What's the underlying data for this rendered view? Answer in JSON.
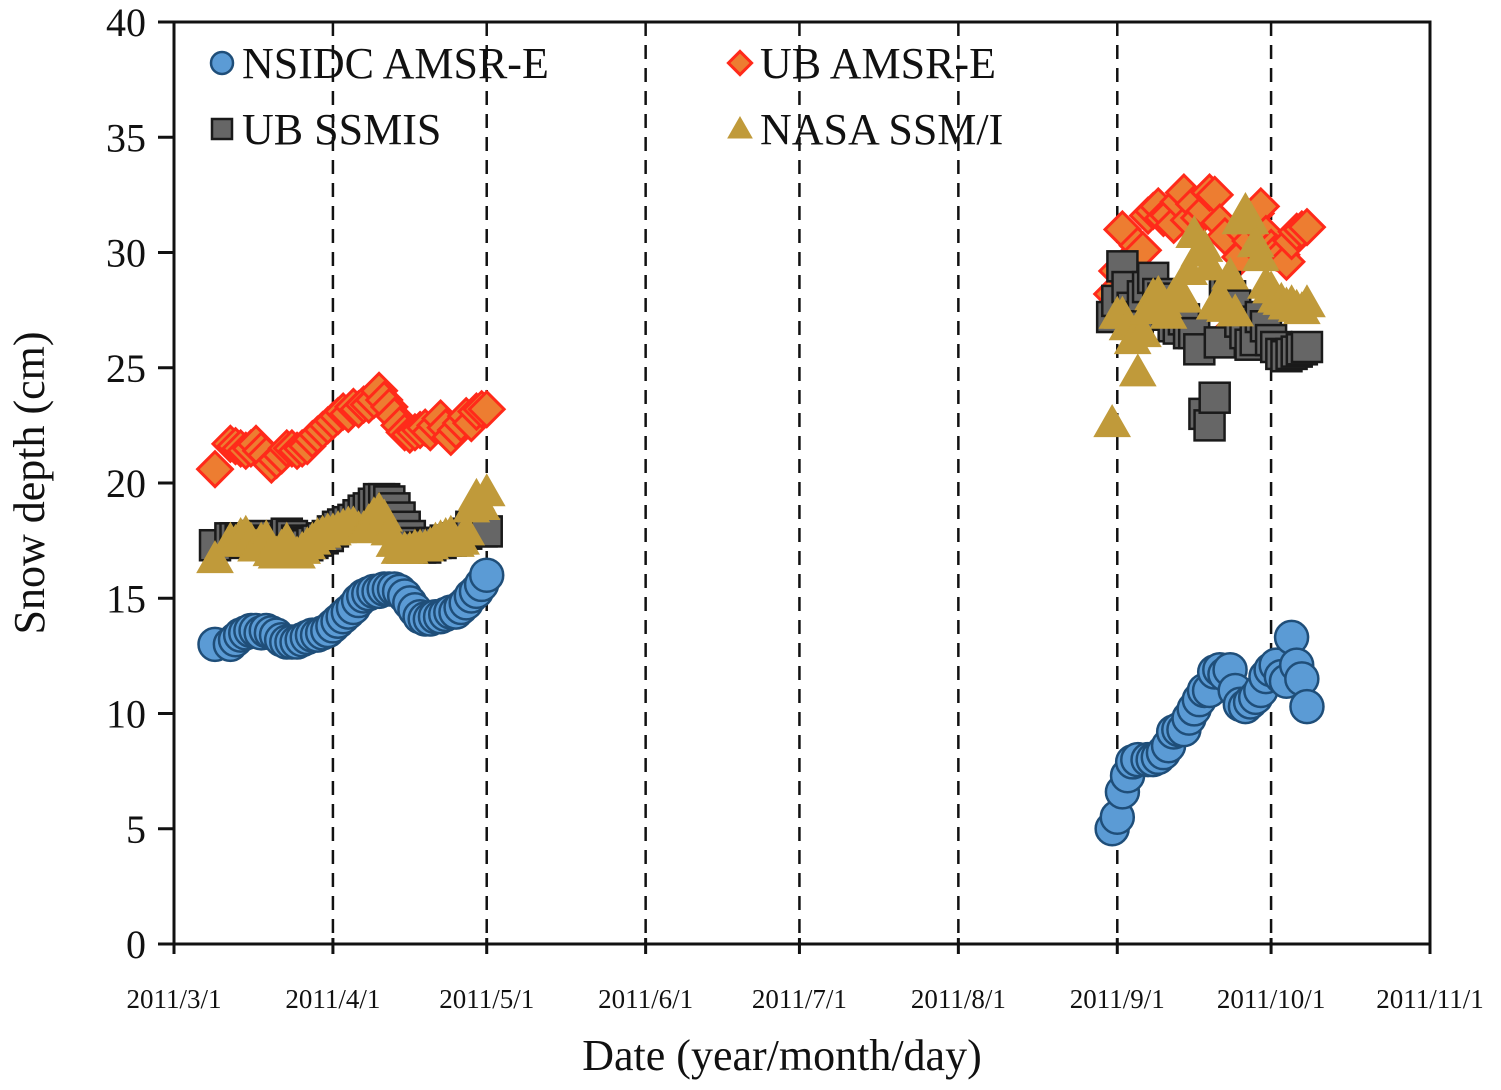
{
  "chart_data": {
    "type": "scatter",
    "title": "",
    "xlabel": "Date (year/month/day)",
    "ylabel": "Snow depth (cm)",
    "x_units": "days since 2011/3/1",
    "xlim": [
      0,
      245
    ],
    "ylim": [
      0,
      40
    ],
    "y_ticks": [
      0,
      5,
      10,
      15,
      20,
      25,
      30,
      35,
      40
    ],
    "x_ticks": [
      {
        "day": 0,
        "label": "2011/3/1"
      },
      {
        "day": 31,
        "label": "2011/4/1"
      },
      {
        "day": 61,
        "label": "2011/5/1"
      },
      {
        "day": 92,
        "label": "2011/6/1"
      },
      {
        "day": 122,
        "label": "2011/7/1"
      },
      {
        "day": 153,
        "label": "2011/8/1"
      },
      {
        "day": 184,
        "label": "2011/9/1"
      },
      {
        "day": 214,
        "label": "2011/10/1"
      },
      {
        "day": 245,
        "label": "2011/11/1"
      }
    ],
    "vertical_dashed_lines_at_days": [
      31,
      61,
      92,
      122,
      153,
      184,
      214
    ],
    "grid": false,
    "legend_position": "top-left",
    "legend": [
      {
        "name": "NSIDC AMSR-E",
        "marker": "circle",
        "color": "#5b9bd5",
        "edge": "#1f4e79"
      },
      {
        "name": "UB AMSR-E",
        "marker": "diamond",
        "color": "#ed7d31",
        "edge": "#ff2a1a"
      },
      {
        "name": "UB SSMIS",
        "marker": "square",
        "color": "#666666",
        "edge": "#1a1a1a"
      },
      {
        "name": "NASA SSM/I",
        "marker": "triangle",
        "color": "#c09a3a",
        "edge": "#c09a3a"
      }
    ],
    "series": [
      {
        "name": "NSIDC AMSR-E",
        "x": [
          8,
          11,
          12,
          13,
          14,
          15,
          16,
          17,
          18,
          19,
          20,
          21,
          22,
          23,
          24,
          25,
          26,
          27,
          28,
          29,
          30,
          31,
          32,
          33,
          34,
          35,
          36,
          37,
          38,
          39,
          40,
          41,
          42,
          43,
          44,
          45,
          46,
          47,
          48,
          49,
          50,
          51,
          52,
          53,
          54,
          55,
          56,
          57,
          58,
          59,
          60,
          61,
          183,
          184,
          185,
          186,
          187,
          188,
          190,
          191,
          192,
          193,
          194,
          195,
          196,
          197,
          198,
          199,
          200,
          201,
          202,
          203,
          204,
          205,
          206,
          207,
          208,
          209,
          210,
          211,
          212,
          213,
          214,
          215,
          216,
          217,
          218,
          219,
          220,
          221
        ],
        "y": [
          13.0,
          13.0,
          13.2,
          13.4,
          13.5,
          13.6,
          13.6,
          13.5,
          13.6,
          13.5,
          13.4,
          13.2,
          13.1,
          13.1,
          13.1,
          13.2,
          13.3,
          13.4,
          13.4,
          13.5,
          13.6,
          13.8,
          14.0,
          14.2,
          14.4,
          14.6,
          14.9,
          15.1,
          15.2,
          15.3,
          15.3,
          15.4,
          15.4,
          15.4,
          15.3,
          15.1,
          14.8,
          14.5,
          14.2,
          14.1,
          14.1,
          14.2,
          14.2,
          14.3,
          14.4,
          14.4,
          14.6,
          14.8,
          15.1,
          15.3,
          15.6,
          16.0,
          5.0,
          5.5,
          6.6,
          7.3,
          7.9,
          8.0,
          8.0,
          8.0,
          8.1,
          8.3,
          8.6,
          9.2,
          9.3,
          9.3,
          9.8,
          10.2,
          10.6,
          11.0,
          11.0,
          11.8,
          11.9,
          11.7,
          11.9,
          11.0,
          10.4,
          10.3,
          10.5,
          10.7,
          11.0,
          11.6,
          11.9,
          12.1,
          11.6,
          11.4,
          13.3,
          12.1,
          11.5,
          10.3
        ]
      },
      {
        "name": "UB AMSR-E",
        "x": [
          8,
          11,
          12,
          13,
          14,
          15,
          16,
          17,
          18,
          19,
          20,
          21,
          22,
          23,
          24,
          25,
          26,
          27,
          28,
          29,
          30,
          31,
          32,
          33,
          34,
          35,
          36,
          37,
          38,
          39,
          40,
          41,
          42,
          43,
          44,
          45,
          46,
          47,
          48,
          49,
          50,
          51,
          52,
          53,
          54,
          55,
          56,
          57,
          58,
          59,
          60,
          61,
          183,
          184,
          185,
          186,
          187,
          188,
          189,
          190,
          191,
          192,
          193,
          194,
          195,
          196,
          197,
          198,
          199,
          200,
          201,
          202,
          203,
          204,
          205,
          206,
          207,
          208,
          209,
          210,
          211,
          212,
          213,
          214,
          215,
          216,
          217,
          218,
          219,
          220,
          221
        ],
        "y": [
          20.6,
          21.7,
          21.6,
          21.5,
          21.4,
          21.5,
          21.7,
          21.4,
          21.2,
          20.8,
          21.0,
          21.2,
          21.5,
          21.5,
          21.4,
          21.5,
          21.6,
          21.9,
          22.1,
          22.3,
          22.5,
          22.7,
          22.9,
          23.1,
          23.0,
          23.3,
          23.2,
          23.4,
          23.4,
          23.6,
          24.0,
          23.6,
          23.3,
          22.9,
          22.5,
          22.2,
          22.1,
          22.2,
          22.3,
          22.4,
          22.2,
          22.5,
          22.8,
          22.4,
          22.0,
          22.3,
          22.6,
          22.9,
          22.6,
          23.1,
          23.2,
          23.2,
          28.2,
          29.2,
          31.0,
          28.9,
          29.8,
          30.3,
          30.1,
          31.6,
          31.8,
          32.0,
          31.5,
          31.6,
          31.2,
          32.2,
          32.6,
          31.4,
          32.1,
          31.5,
          31.8,
          32.6,
          32.5,
          31.3,
          30.7,
          26.6,
          26.3,
          29.8,
          30.8,
          30.5,
          31.7,
          32.0,
          30.8,
          30.2,
          30.0,
          29.9,
          29.6,
          30.5,
          30.9,
          31.0,
          31.1
        ]
      },
      {
        "name": "UB SSMIS",
        "x": [
          8,
          11,
          12,
          13,
          14,
          15,
          16,
          17,
          18,
          19,
          20,
          21,
          22,
          23,
          24,
          25,
          26,
          27,
          28,
          29,
          30,
          31,
          32,
          33,
          34,
          35,
          36,
          37,
          38,
          39,
          40,
          41,
          42,
          43,
          44,
          45,
          46,
          47,
          48,
          49,
          50,
          51,
          52,
          53,
          54,
          55,
          56,
          57,
          58,
          59,
          60,
          61,
          183,
          184,
          185,
          186,
          187,
          188,
          189,
          190,
          191,
          192,
          193,
          194,
          195,
          196,
          197,
          198,
          199,
          200,
          201,
          202,
          203,
          204,
          205,
          206,
          207,
          208,
          209,
          210,
          211,
          212,
          213,
          214,
          215,
          216,
          217,
          218,
          219,
          220,
          221
        ],
        "y": [
          17.3,
          17.6,
          17.6,
          17.5,
          17.4,
          17.6,
          17.7,
          17.5,
          17.4,
          17.3,
          17.2,
          17.5,
          17.8,
          17.7,
          17.5,
          17.4,
          17.3,
          17.4,
          17.5,
          17.6,
          17.7,
          17.9,
          18.1,
          18.2,
          18.3,
          18.4,
          18.6,
          18.8,
          18.9,
          19.1,
          19.3,
          19.3,
          19.2,
          18.9,
          18.5,
          18.1,
          17.7,
          17.4,
          17.2,
          17.2,
          17.3,
          17.4,
          17.4,
          17.5,
          17.5,
          17.6,
          17.6,
          17.8,
          18.1,
          18.1,
          17.9,
          17.9,
          27.2,
          27.9,
          29.4,
          28.5,
          27.6,
          27.2,
          28.1,
          28.5,
          28.9,
          28.2,
          28.0,
          27.3,
          26.8,
          26.7,
          27.1,
          26.5,
          26.5,
          25.8,
          23.0,
          22.5,
          23.7,
          26.1,
          28.5,
          28.1,
          27.7,
          27.0,
          26.5,
          26.0,
          26.2,
          27.2,
          26.8,
          26.2,
          25.9,
          25.6,
          25.5,
          25.6,
          25.7,
          25.8,
          25.9
        ]
      },
      {
        "name": "NASA SSM/I",
        "x": [
          8,
          11,
          12,
          13,
          14,
          15,
          16,
          17,
          18,
          19,
          20,
          21,
          22,
          23,
          24,
          25,
          26,
          27,
          28,
          29,
          30,
          31,
          32,
          33,
          34,
          35,
          36,
          37,
          38,
          39,
          40,
          41,
          42,
          43,
          44,
          45,
          46,
          47,
          48,
          49,
          50,
          51,
          52,
          53,
          54,
          55,
          56,
          57,
          58,
          59,
          60,
          61,
          183,
          184,
          185,
          186,
          187,
          188,
          189,
          190,
          191,
          192,
          193,
          194,
          195,
          196,
          197,
          198,
          199,
          200,
          201,
          202,
          203,
          204,
          205,
          206,
          207,
          208,
          209,
          210,
          211,
          212,
          213,
          214,
          215,
          216,
          217,
          218,
          219,
          220,
          221
        ],
        "y": [
          16.7,
          17.5,
          17.4,
          17.7,
          17.8,
          17.5,
          17.2,
          17.5,
          17.6,
          17.0,
          16.9,
          17.2,
          17.5,
          17.1,
          16.9,
          17.1,
          17.3,
          17.5,
          17.7,
          17.8,
          17.9,
          17.9,
          18.0,
          18.1,
          18.2,
          18.2,
          18.0,
          18.0,
          18.3,
          18.6,
          18.8,
          18.5,
          17.9,
          17.4,
          17.1,
          17.1,
          17.1,
          17.2,
          17.2,
          17.2,
          17.3,
          17.5,
          17.6,
          17.7,
          17.8,
          17.4,
          17.5,
          17.9,
          18.9,
          19.4,
          19.0,
          19.6,
          22.6,
          27.3,
          27.3,
          26.8,
          26.2,
          24.8,
          26.5,
          27.5,
          28.1,
          28.2,
          27.8,
          27.3,
          28.1,
          28.4,
          28.0,
          29.2,
          30.8,
          30.0,
          30.2,
          29.4,
          27.7,
          28.1,
          27.6,
          29.0,
          27.4,
          31.4,
          31.8,
          31.4,
          30.4,
          29.8,
          28.6,
          28.4,
          28.0,
          27.9,
          27.7,
          27.8,
          27.6,
          27.5,
          27.8
        ]
      }
    ]
  }
}
